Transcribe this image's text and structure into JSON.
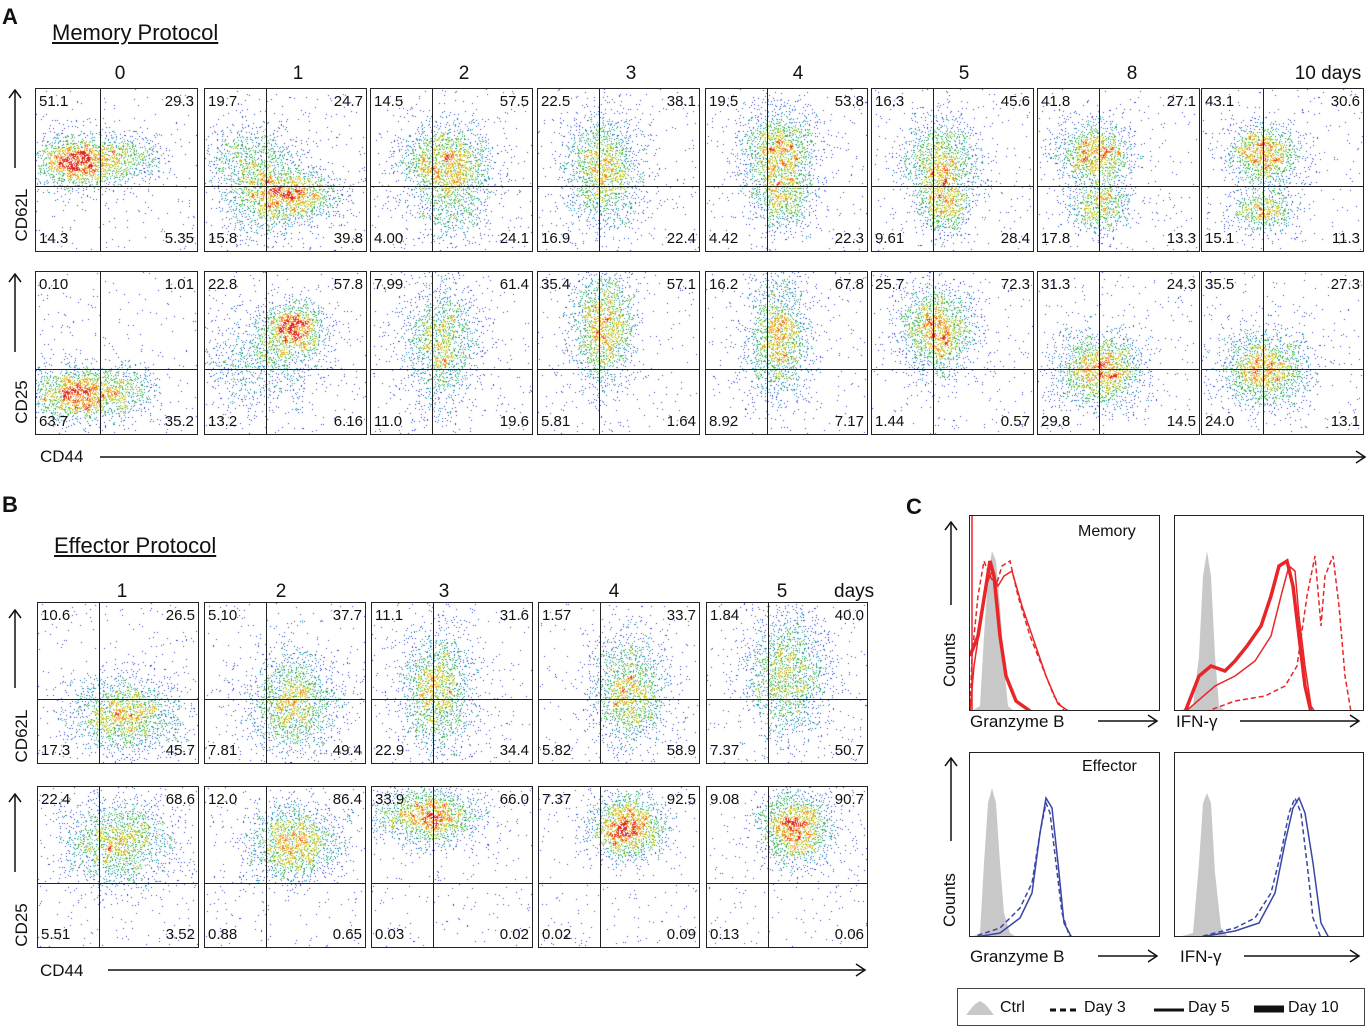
{
  "panelA": {
    "letter": "A",
    "title": "Memory Protocol",
    "days": [
      "0",
      "1",
      "2",
      "3",
      "4",
      "5",
      "8",
      "10 days"
    ],
    "row_labels": [
      "CD62L",
      "CD25"
    ],
    "x_label": "CD44",
    "rows": [
      [
        [
          "51.1",
          "29.3",
          "14.3",
          "5.35"
        ],
        [
          "19.7",
          "24.7",
          "15.8",
          "39.8"
        ],
        [
          "14.5",
          "57.5",
          "4.00",
          "24.1"
        ],
        [
          "22.5",
          "38.1",
          "16.9",
          "22.4"
        ],
        [
          "19.5",
          "53.8",
          "4.42",
          "22.3"
        ],
        [
          "16.3",
          "45.6",
          "9.61",
          "28.4"
        ],
        [
          "41.8",
          "27.1",
          "17.8",
          "13.3"
        ],
        [
          "43.1",
          "30.6",
          "15.1",
          "11.3"
        ]
      ],
      [
        [
          "0.10",
          "1.01",
          "63.7",
          "35.2"
        ],
        [
          "22.8",
          "57.8",
          "13.2",
          "6.16"
        ],
        [
          "7.99",
          "61.4",
          "11.0",
          "19.6"
        ],
        [
          "35.4",
          "57.1",
          "5.81",
          "1.64"
        ],
        [
          "16.2",
          "67.8",
          "8.92",
          "7.17"
        ],
        [
          "25.7",
          "72.3",
          "1.44",
          "0.57"
        ],
        [
          "31.3",
          "24.3",
          "29.8",
          "14.5"
        ],
        [
          "35.5",
          "27.3",
          "24.0",
          "13.1"
        ]
      ]
    ]
  },
  "panelB": {
    "letter": "B",
    "title": "Effector Protocol",
    "days": [
      "1",
      "2",
      "3",
      "4",
      "5"
    ],
    "days_unit": "days",
    "row_labels": [
      "CD62L",
      "CD25"
    ],
    "x_label": "CD44",
    "rows": [
      [
        [
          "10.6",
          "26.5",
          "17.3",
          "45.7"
        ],
        [
          "5.10",
          "37.7",
          "7.81",
          "49.4"
        ],
        [
          "11.1",
          "31.6",
          "22.9",
          "34.4"
        ],
        [
          "1.57",
          "33.7",
          "5.82",
          "58.9"
        ],
        [
          "1.84",
          "40.0",
          "7.37",
          "50.7"
        ]
      ],
      [
        [
          "22.4",
          "68.6",
          "5.51",
          "3.52"
        ],
        [
          "12.0",
          "86.4",
          "0.88",
          "0.65"
        ],
        [
          "33.9",
          "66.0",
          "0.03",
          "0.02"
        ],
        [
          "7.37",
          "92.5",
          "0.02",
          "0.09"
        ],
        [
          "9.08",
          "90.7",
          "0.13",
          "0.06"
        ]
      ]
    ]
  },
  "panelC": {
    "letter": "C",
    "y_label": "Counts",
    "memory_label": "Memory",
    "effector_label": "Effector",
    "x_labels": [
      "Granzyme B",
      "IFN-γ"
    ],
    "memory_color": "#e8262a",
    "effector_color": "#3a45a8",
    "legend": [
      "Ctrl",
      "Day 3",
      "Day 5",
      "Day 10"
    ]
  }
}
